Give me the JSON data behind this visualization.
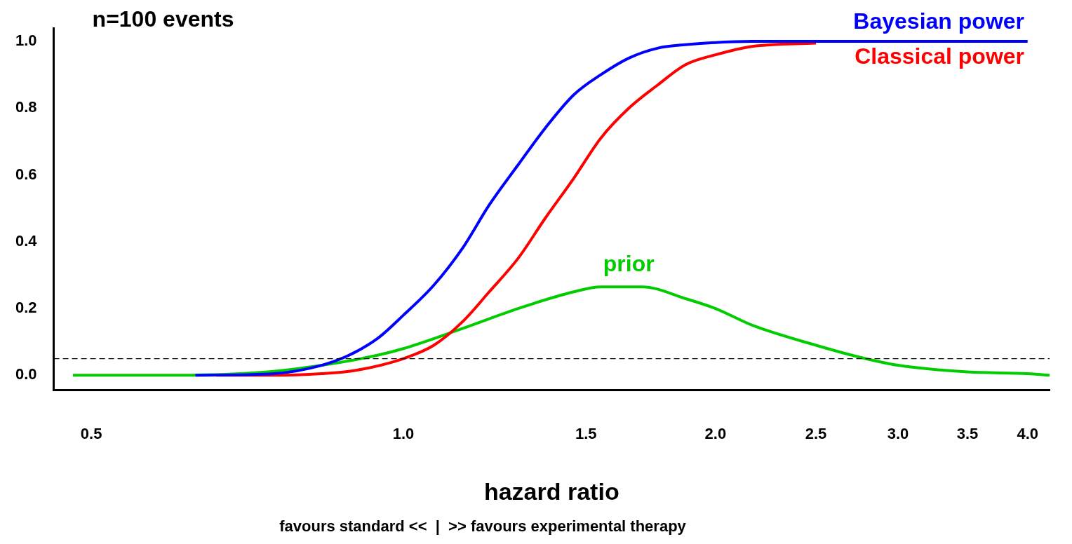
{
  "chart_data": {
    "type": "line",
    "title": "n=100 events",
    "xlabel": "hazard ratio",
    "annotations": [
      "favours standard <<  |  >> favours experimental therapy"
    ],
    "log": "x",
    "xlim": [
      0.46,
      4.2
    ],
    "xticks": [
      0.5,
      {
        "value": 1,
        "label": "1.0"
      },
      1.5,
      {
        "value": 2,
        "label": "2.0"
      },
      2.5,
      {
        "value": 3,
        "label": "3.0"
      },
      3.5,
      {
        "value": 4,
        "label": "4.0"
      }
    ],
    "ylim": [
      -0.045,
      1.04
    ],
    "yticks": [
      {
        "value": 0,
        "label": "0.0"
      },
      {
        "value": 0.2,
        "label": "0.2"
      },
      {
        "value": 0.4,
        "label": "0.4"
      },
      {
        "value": 0.6,
        "label": "0.6"
      },
      {
        "value": 0.8,
        "label": "0.8"
      },
      {
        "value": 1,
        "label": "1.0"
      }
    ],
    "grid": false,
    "legend": false,
    "marker": "none",
    "line_style": "solid",
    "ref_lines": [
      {
        "axis": "y",
        "value": 0.05,
        "color": "#000000",
        "line_style": "dashed"
      }
    ],
    "series": [
      {
        "name": "Bayesian power",
        "color": "#0000ff",
        "x": [
          0.63,
          0.75,
          0.834,
          0.886,
          0.944,
          1.0,
          1.07,
          1.14,
          1.21,
          1.29,
          1.37,
          1.46,
          1.55,
          1.65,
          1.76,
          1.87,
          2.17,
          2.5,
          3.0,
          4.0
        ],
        "values": [
          0,
          0.005,
          0.03,
          0.06,
          0.11,
          0.18,
          0.27,
          0.38,
          0.51,
          0.63,
          0.74,
          0.84,
          0.9,
          0.95,
          0.98,
          0.99,
          1.0,
          1.0,
          1.0,
          1.0
        ]
      },
      {
        "name": "Classical power",
        "color": "#ff0000",
        "x": [
          0.66,
          0.75,
          0.834,
          0.9,
          1.0,
          1.07,
          1.14,
          1.21,
          1.29,
          1.37,
          1.46,
          1.55,
          1.65,
          1.76,
          1.87,
          2.0,
          2.17,
          2.5
        ],
        "values": [
          0,
          0,
          0.005,
          0.015,
          0.05,
          0.09,
          0.16,
          0.25,
          0.35,
          0.47,
          0.59,
          0.71,
          0.8,
          0.87,
          0.93,
          0.96,
          0.985,
          0.995
        ]
      },
      {
        "name": "prior",
        "color": "#00cc00",
        "x": [
          0.48,
          0.6,
          0.74,
          0.834,
          0.944,
          1.0,
          1.14,
          1.29,
          1.46,
          1.55,
          1.7,
          1.87,
          2.0,
          2.17,
          2.5,
          2.79,
          3.0,
          3.5,
          4.0,
          4.2
        ],
        "values": [
          0,
          0,
          0.01,
          0.03,
          0.06,
          0.08,
          0.14,
          0.2,
          0.25,
          0.265,
          0.265,
          0.23,
          0.2,
          0.15,
          0.09,
          0.05,
          0.03,
          0.01,
          0.005,
          0
        ]
      }
    ]
  }
}
